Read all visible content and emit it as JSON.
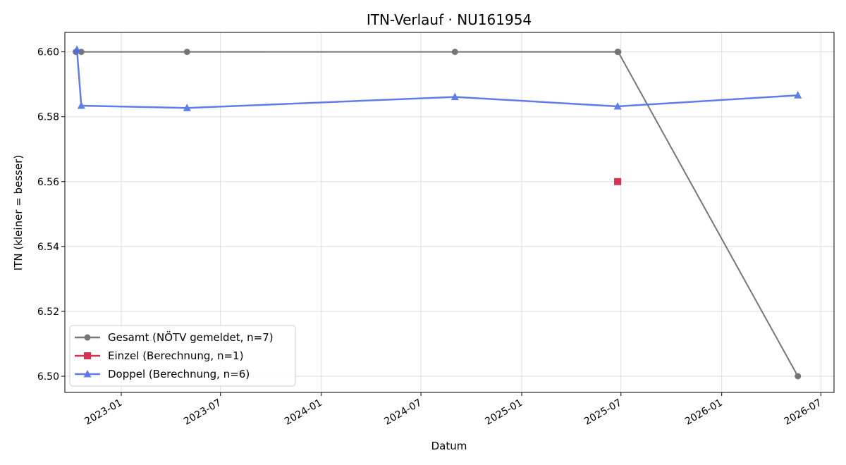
{
  "chart_data": {
    "type": "line",
    "title": "ITN-Verlauf · NU161954",
    "xlabel": "Datum",
    "ylabel": "ITN  (kleiner = besser)",
    "x_range": [
      "2022-09-20",
      "2026-07-25"
    ],
    "ylim": [
      6.495,
      6.606
    ],
    "grid": true,
    "legend_position": "lower-left",
    "x_ticks": [
      "2023-01",
      "2023-07",
      "2024-01",
      "2024-07",
      "2025-01",
      "2025-07",
      "2026-01",
      "2026-07"
    ],
    "y_ticks": [
      6.5,
      6.52,
      6.54,
      6.56,
      6.58,
      6.6
    ],
    "series": [
      {
        "name": "Gesamt (NÖTV gemeldet, n=7)",
        "color": "#555555",
        "marker": "circle",
        "points": [
          {
            "x": "2022-10-10",
            "y": 6.6
          },
          {
            "x": "2022-10-20",
            "y": 6.6
          },
          {
            "x": "2023-05-01",
            "y": 6.6
          },
          {
            "x": "2024-09-01",
            "y": 6.6
          },
          {
            "x": "2025-06-25",
            "y": 6.6
          },
          {
            "x": "2025-06-26",
            "y": 6.6
          },
          {
            "x": "2026-05-20",
            "y": 6.5
          }
        ]
      },
      {
        "name": "Einzel (Berechnung, n=1)",
        "color": "#cc1f3e",
        "marker": "square",
        "points": [
          {
            "x": "2025-06-25",
            "y": 6.56
          }
        ]
      },
      {
        "name": "Doppel (Berechnung, n=6)",
        "color": "#4f6ee8",
        "marker": "triangle",
        "points": [
          {
            "x": "2022-10-12",
            "y": 6.6007
          },
          {
            "x": "2022-10-20",
            "y": 6.5834
          },
          {
            "x": "2023-05-01",
            "y": 6.5827
          },
          {
            "x": "2024-09-01",
            "y": 6.5861
          },
          {
            "x": "2025-06-25",
            "y": 6.5832
          },
          {
            "x": "2026-05-20",
            "y": 6.5866
          }
        ]
      }
    ]
  }
}
